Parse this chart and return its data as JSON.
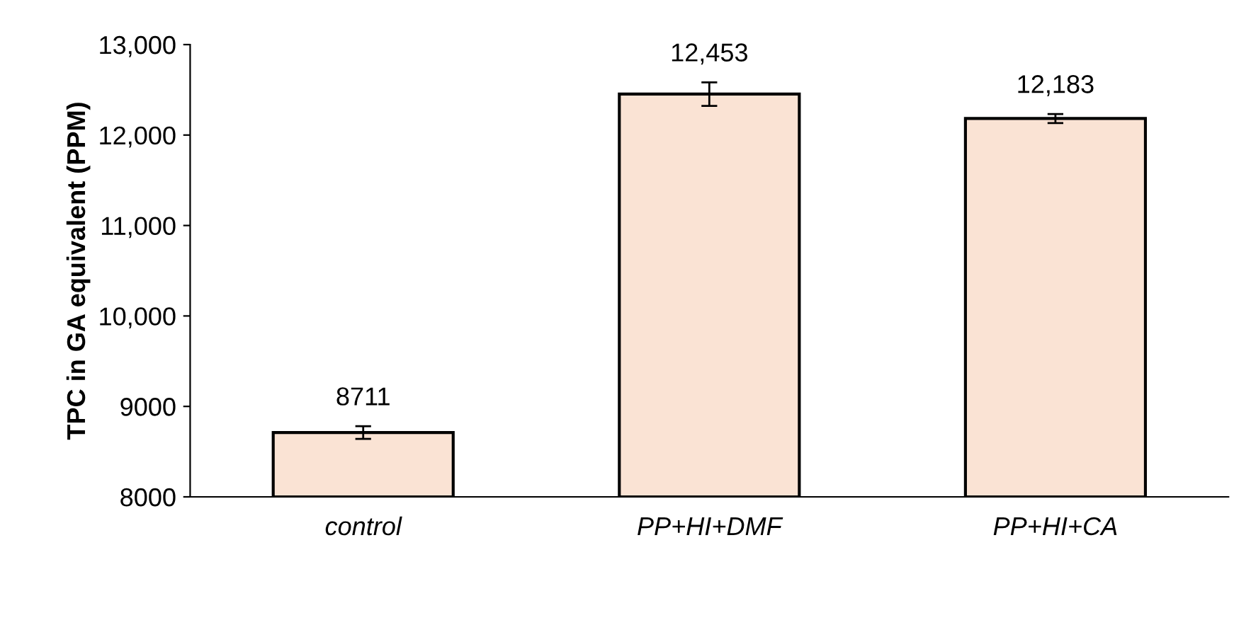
{
  "chart_data": {
    "type": "bar",
    "ylabel": "TPC in GA equivalent (PPM)",
    "categories": [
      "control",
      "PP+HI+DMF",
      "PP+HI+CA"
    ],
    "values": [
      8711,
      12453,
      12183
    ],
    "errors": [
      70,
      130,
      50
    ],
    "value_labels": [
      "8711",
      "12,453",
      "12,183"
    ],
    "color": "#fae3d4",
    "ylim": [
      8000,
      13000
    ],
    "yticks": [
      8000,
      9000,
      {
        "value": 10000,
        "label": "10,000"
      },
      {
        "value": 11000,
        "label": "11,000"
      },
      {
        "value": 12000,
        "label": "12,000"
      },
      {
        "value": 13000,
        "label": "13,000"
      }
    ],
    "grid": false,
    "legend": false
  }
}
